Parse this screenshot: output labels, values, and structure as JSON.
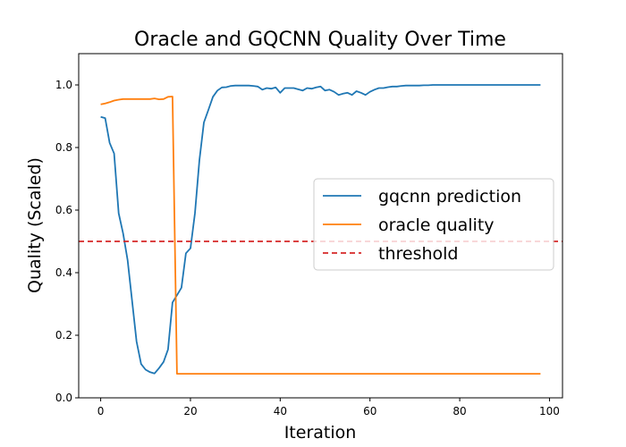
{
  "chart_data": {
    "type": "line",
    "title": "Oracle and GQCNN Quality Over Time",
    "xlabel": "Iteration",
    "ylabel": "Quality (Scaled)",
    "xlim": [
      -4.9,
      102.9
    ],
    "ylim": [
      0.0,
      1.1
    ],
    "xticks": [
      0,
      20,
      40,
      60,
      80,
      100
    ],
    "yticks": [
      0.0,
      0.2,
      0.4,
      0.6,
      0.8,
      1.0
    ],
    "xtick_labels": [
      "0",
      "20",
      "40",
      "60",
      "80",
      "100"
    ],
    "ytick_labels": [
      "0.0",
      "0.2",
      "0.4",
      "0.6",
      "0.8",
      "1.0"
    ],
    "grid": false,
    "legend_position": "center-right",
    "series": [
      {
        "name": "gqcnn prediction",
        "color": "#1f77b4",
        "style": "solid",
        "x": [
          0,
          1,
          2,
          3,
          4,
          5,
          6,
          7,
          8,
          9,
          10,
          11,
          12,
          13,
          14,
          15,
          16,
          17,
          18,
          19,
          20,
          21,
          22,
          23,
          24,
          25,
          26,
          27,
          28,
          29,
          30,
          31,
          32,
          33,
          34,
          35,
          36,
          37,
          38,
          39,
          40,
          41,
          42,
          43,
          44,
          45,
          46,
          47,
          48,
          49,
          50,
          51,
          52,
          53,
          54,
          55,
          56,
          57,
          58,
          59,
          60,
          61,
          62,
          63,
          64,
          65,
          66,
          67,
          68,
          69,
          70,
          71,
          72,
          73,
          74,
          75,
          76,
          77,
          78,
          79,
          80,
          81,
          82,
          83,
          84,
          85,
          86,
          87,
          88,
          89,
          90,
          91,
          92,
          93,
          94,
          95,
          96,
          97,
          98
        ],
        "y": [
          0.898,
          0.894,
          0.815,
          0.781,
          0.59,
          0.525,
          0.44,
          0.31,
          0.18,
          0.108,
          0.09,
          0.082,
          0.078,
          0.095,
          0.115,
          0.155,
          0.305,
          0.328,
          0.352,
          0.462,
          0.478,
          0.59,
          0.76,
          0.88,
          0.92,
          0.962,
          0.982,
          0.992,
          0.993,
          0.997,
          0.998,
          0.998,
          0.998,
          0.998,
          0.997,
          0.995,
          0.985,
          0.99,
          0.988,
          0.992,
          0.975,
          0.99,
          0.99,
          0.99,
          0.986,
          0.982,
          0.99,
          0.988,
          0.992,
          0.995,
          0.982,
          0.985,
          0.978,
          0.968,
          0.972,
          0.975,
          0.968,
          0.98,
          0.975,
          0.968,
          0.978,
          0.985,
          0.99,
          0.99,
          0.993,
          0.995,
          0.995,
          0.997,
          0.998,
          0.998,
          0.998,
          0.998,
          0.999,
          0.999,
          1.0,
          1.0,
          1.0,
          1.0,
          1.0,
          1.0,
          1.0,
          1.0,
          1.0,
          1.0,
          1.0,
          1.0,
          1.0,
          1.0,
          1.0,
          1.0,
          1.0,
          1.0,
          1.0,
          1.0,
          1.0,
          1.0,
          1.0,
          1.0,
          1.0
        ]
      },
      {
        "name": "oracle quality",
        "color": "#ff7f0e",
        "style": "solid",
        "x": [
          0,
          1,
          2,
          3,
          4,
          5,
          6,
          7,
          8,
          9,
          10,
          11,
          12,
          13,
          14,
          15,
          16,
          17,
          18,
          19,
          20,
          22,
          25,
          30,
          35,
          40,
          45,
          50,
          55,
          60,
          65,
          70,
          75,
          80,
          85,
          90,
          95,
          98
        ],
        "y": [
          0.938,
          0.941,
          0.945,
          0.95,
          0.953,
          0.955,
          0.955,
          0.955,
          0.955,
          0.955,
          0.955,
          0.955,
          0.957,
          0.954,
          0.955,
          0.962,
          0.963,
          0.077,
          0.077,
          0.077,
          0.077,
          0.077,
          0.077,
          0.077,
          0.077,
          0.077,
          0.077,
          0.077,
          0.077,
          0.077,
          0.077,
          0.077,
          0.077,
          0.077,
          0.077,
          0.077,
          0.077,
          0.077
        ]
      },
      {
        "name": "threshold",
        "color": "#d62728",
        "style": "dashed",
        "y_constant": 0.5
      }
    ]
  }
}
